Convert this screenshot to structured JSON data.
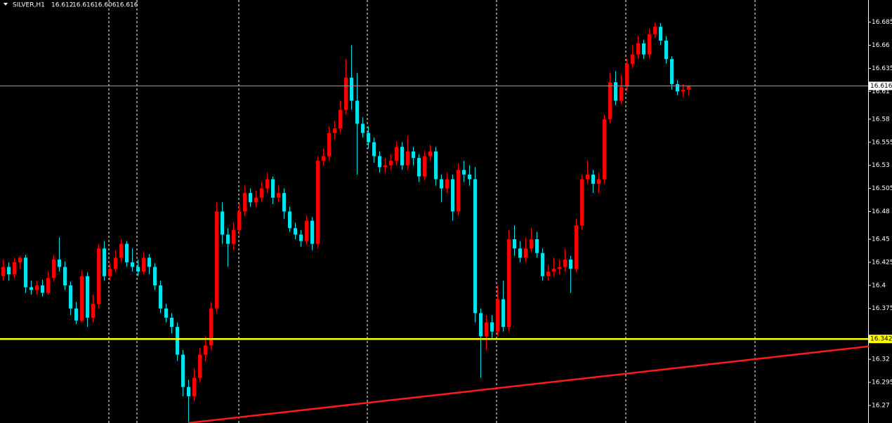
{
  "chart_data": {
    "type": "candlestick",
    "symbol": "SILVER,H1",
    "up_color": "#ff0000",
    "down_color": "#00e5ee",
    "ylim": [
      16.251,
      16.709
    ],
    "yticks": [
      16.685,
      16.66,
      16.635,
      16.61,
      16.58,
      16.555,
      16.53,
      16.505,
      16.48,
      16.45,
      16.425,
      16.4,
      16.375,
      16.32,
      16.295,
      16.27
    ],
    "hline": {
      "value": 16.342,
      "color": "#ffff00"
    },
    "price_line_color": "#9a9a9a",
    "trendline": {
      "x": [
        33,
        154.1
      ],
      "values": [
        16.251,
        16.334
      ],
      "color": "#ff1a1a"
    },
    "ohlc": [
      [
        16.41,
        16.428,
        16.405,
        16.42
      ],
      [
        16.42,
        16.425,
        16.405,
        16.412
      ],
      [
        16.412,
        16.43,
        16.408,
        16.425
      ],
      [
        16.425,
        16.432,
        16.418,
        16.43
      ],
      [
        16.43,
        16.433,
        16.392,
        16.398
      ],
      [
        16.398,
        16.405,
        16.39,
        16.395
      ],
      [
        16.395,
        16.405,
        16.39,
        16.4
      ],
      [
        16.4,
        16.406,
        16.388,
        16.392
      ],
      [
        16.392,
        16.415,
        16.39,
        16.408
      ],
      [
        16.408,
        16.433,
        16.404,
        16.428
      ],
      [
        16.428,
        16.452,
        16.415,
        16.42
      ],
      [
        16.42,
        16.426,
        16.395,
        16.4
      ],
      [
        16.4,
        16.404,
        16.368,
        16.375
      ],
      [
        16.375,
        16.382,
        16.358,
        16.362
      ],
      [
        16.362,
        16.416,
        16.36,
        16.41
      ],
      [
        16.41,
        16.414,
        16.355,
        16.365
      ],
      [
        16.365,
        16.39,
        16.36,
        16.38
      ],
      [
        16.38,
        16.445,
        16.375,
        16.44
      ],
      [
        16.44,
        16.448,
        16.405,
        16.41
      ],
      [
        16.41,
        16.424,
        16.405,
        16.418
      ],
      [
        16.418,
        16.438,
        16.414,
        16.43
      ],
      [
        16.43,
        16.45,
        16.425,
        16.445
      ],
      [
        16.445,
        16.448,
        16.42,
        16.425
      ],
      [
        16.425,
        16.44,
        16.415,
        16.42
      ],
      [
        16.42,
        16.428,
        16.41,
        16.415
      ],
      [
        16.415,
        16.436,
        16.412,
        16.43
      ],
      [
        16.43,
        16.434,
        16.412,
        16.42
      ],
      [
        16.42,
        16.424,
        16.395,
        16.4
      ],
      [
        16.4,
        16.405,
        16.37,
        16.375
      ],
      [
        16.375,
        16.38,
        16.36,
        16.365
      ],
      [
        16.365,
        16.37,
        16.348,
        16.355
      ],
      [
        16.355,
        16.36,
        16.318,
        16.325
      ],
      [
        16.325,
        16.33,
        16.28,
        16.29
      ],
      [
        16.29,
        16.298,
        16.252,
        16.28
      ],
      [
        16.28,
        16.31,
        16.275,
        16.3
      ],
      [
        16.3,
        16.332,
        16.295,
        16.325
      ],
      [
        16.325,
        16.345,
        16.318,
        16.335
      ],
      [
        16.335,
        16.382,
        16.33,
        16.375
      ],
      [
        16.375,
        16.49,
        16.37,
        16.48
      ],
      [
        16.48,
        16.49,
        16.445,
        16.455
      ],
      [
        16.455,
        16.462,
        16.42,
        16.445
      ],
      [
        16.445,
        16.468,
        16.438,
        16.46
      ],
      [
        16.46,
        16.488,
        16.455,
        16.48
      ],
      [
        16.48,
        16.508,
        16.475,
        16.5
      ],
      [
        16.5,
        16.505,
        16.485,
        16.49
      ],
      [
        16.49,
        16.502,
        16.485,
        16.495
      ],
      [
        16.495,
        16.512,
        16.49,
        16.505
      ],
      [
        16.505,
        16.522,
        16.5,
        16.515
      ],
      [
        16.515,
        16.518,
        16.488,
        16.495
      ],
      [
        16.495,
        16.508,
        16.49,
        16.5
      ],
      [
        16.5,
        16.505,
        16.472,
        16.48
      ],
      [
        16.48,
        16.485,
        16.458,
        16.462
      ],
      [
        16.462,
        16.468,
        16.45,
        16.455
      ],
      [
        16.455,
        16.46,
        16.442,
        16.448
      ],
      [
        16.448,
        16.476,
        16.444,
        16.47
      ],
      [
        16.47,
        16.474,
        16.438,
        16.445
      ],
      [
        16.445,
        16.54,
        16.44,
        16.535
      ],
      [
        16.535,
        16.548,
        16.53,
        16.54
      ],
      [
        16.54,
        16.572,
        16.535,
        16.565
      ],
      [
        16.565,
        16.578,
        16.558,
        16.57
      ],
      [
        16.57,
        16.6,
        16.565,
        16.59
      ],
      [
        16.59,
        16.645,
        16.585,
        16.625
      ],
      [
        16.625,
        16.66,
        16.59,
        16.6
      ],
      [
        16.6,
        16.63,
        16.52,
        16.575
      ],
      [
        16.575,
        16.582,
        16.56,
        16.565
      ],
      [
        16.565,
        16.572,
        16.548,
        16.555
      ],
      [
        16.555,
        16.56,
        16.533,
        16.54
      ],
      [
        16.54,
        16.545,
        16.522,
        16.528
      ],
      [
        16.528,
        16.538,
        16.522,
        16.53
      ],
      [
        16.53,
        16.542,
        16.525,
        16.535
      ],
      [
        16.535,
        16.556,
        16.53,
        16.55
      ],
      [
        16.55,
        16.555,
        16.525,
        16.53
      ],
      [
        16.53,
        16.562,
        16.525,
        16.545
      ],
      [
        16.545,
        16.55,
        16.53,
        16.538
      ],
      [
        16.538,
        16.542,
        16.512,
        16.518
      ],
      [
        16.518,
        16.546,
        16.514,
        16.54
      ],
      [
        16.54,
        16.552,
        16.535,
        16.545
      ],
      [
        16.545,
        16.55,
        16.508,
        16.515
      ],
      [
        16.515,
        16.52,
        16.49,
        16.505
      ],
      [
        16.505,
        16.522,
        16.5,
        16.515
      ],
      [
        16.515,
        16.52,
        16.47,
        16.48
      ],
      [
        16.48,
        16.532,
        16.476,
        16.525
      ],
      [
        16.525,
        16.535,
        16.512,
        16.52
      ],
      [
        16.52,
        16.53,
        16.508,
        16.515
      ],
      [
        16.515,
        16.528,
        16.36,
        16.37
      ],
      [
        16.37,
        16.375,
        16.3,
        16.345
      ],
      [
        16.345,
        16.368,
        16.33,
        16.36
      ],
      [
        16.36,
        16.368,
        16.342,
        16.35
      ],
      [
        16.35,
        16.4,
        16.345,
        16.385
      ],
      [
        16.385,
        16.405,
        16.35,
        16.355
      ],
      [
        16.355,
        16.46,
        16.35,
        16.45
      ],
      [
        16.45,
        16.465,
        16.432,
        16.44
      ],
      [
        16.44,
        16.448,
        16.425,
        16.43
      ],
      [
        16.43,
        16.452,
        16.425,
        16.44
      ],
      [
        16.44,
        16.462,
        16.436,
        16.45
      ],
      [
        16.45,
        16.458,
        16.43,
        16.435
      ],
      [
        16.435,
        16.44,
        16.405,
        16.41
      ],
      [
        16.41,
        16.422,
        16.405,
        16.415
      ],
      [
        16.415,
        16.43,
        16.41,
        16.418
      ],
      [
        16.418,
        16.428,
        16.412,
        16.42
      ],
      [
        16.42,
        16.44,
        16.415,
        16.428
      ],
      [
        16.428,
        16.432,
        16.392,
        16.418
      ],
      [
        16.418,
        16.472,
        16.414,
        16.465
      ],
      [
        16.465,
        16.52,
        16.46,
        16.515
      ],
      [
        16.515,
        16.535,
        16.51,
        16.52
      ],
      [
        16.52,
        16.525,
        16.5,
        16.51
      ],
      [
        16.51,
        16.522,
        16.5,
        16.515
      ],
      [
        16.515,
        16.585,
        16.51,
        16.58
      ],
      [
        16.58,
        16.63,
        16.575,
        16.62
      ],
      [
        16.62,
        16.632,
        16.595,
        16.6
      ],
      [
        16.6,
        16.628,
        16.596,
        16.615
      ],
      [
        16.615,
        16.645,
        16.61,
        16.64
      ],
      [
        16.64,
        16.66,
        16.635,
        16.65
      ],
      [
        16.65,
        16.67,
        16.645,
        16.662
      ],
      [
        16.662,
        16.666,
        16.645,
        16.65
      ],
      [
        16.65,
        16.678,
        16.646,
        16.672
      ],
      [
        16.672,
        16.685,
        16.668,
        16.68
      ],
      [
        16.68,
        16.684,
        16.66,
        16.665
      ],
      [
        16.665,
        16.67,
        16.64,
        16.645
      ],
      [
        16.645,
        16.648,
        16.612,
        16.618
      ],
      [
        16.618,
        16.622,
        16.606,
        16.61
      ],
      [
        16.61,
        16.618,
        16.604,
        16.612
      ],
      [
        16.612,
        16.616,
        16.606,
        16.616
      ]
    ]
  }
}
